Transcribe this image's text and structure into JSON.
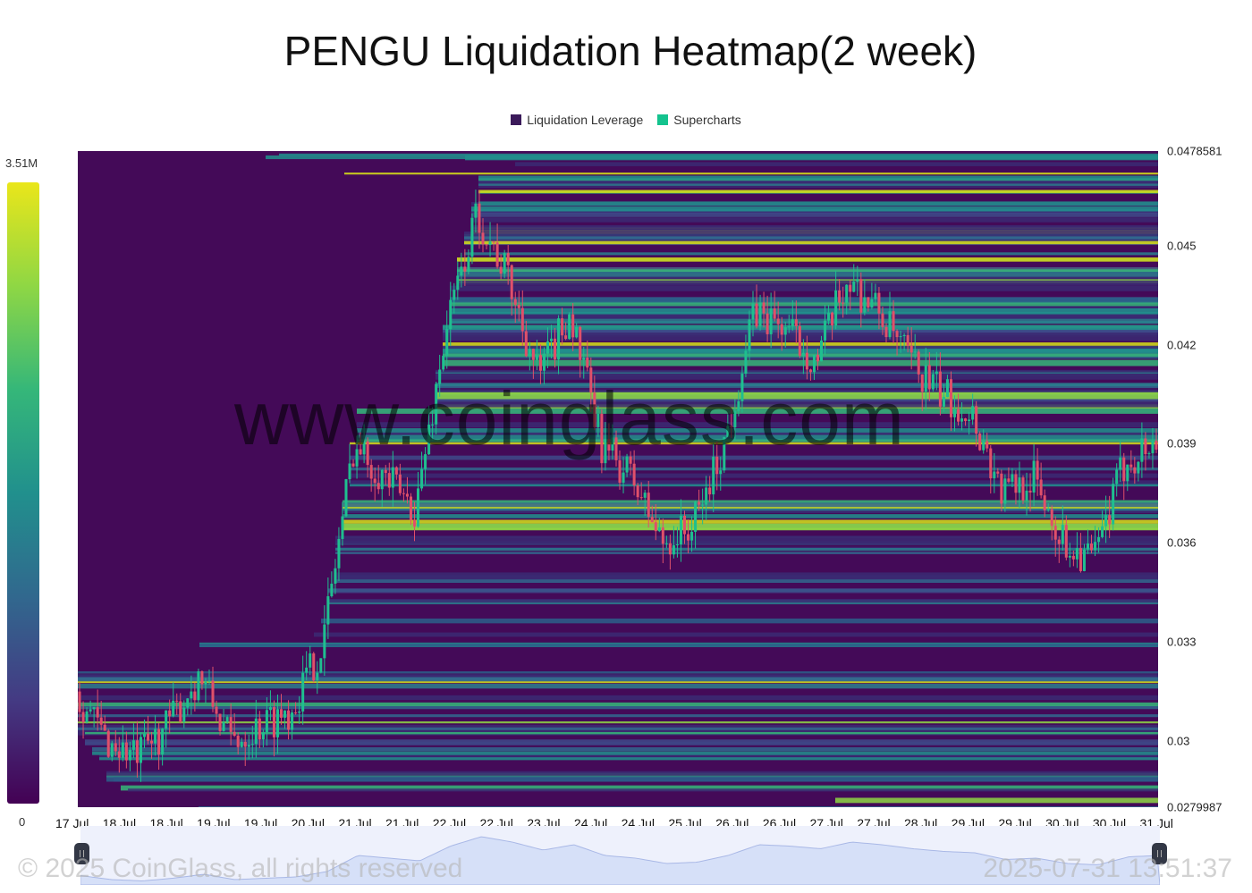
{
  "chart_data": {
    "type": "heatmap",
    "title": "PENGU Liquidation Heatmap(2 week)",
    "legend": [
      {
        "label": "Liquidation Leverage",
        "color": "#3b1a5a"
      },
      {
        "label": "Supercharts",
        "color": "#14c38e"
      }
    ],
    "color_scale": {
      "max_label": "3.51M",
      "min_label": "0",
      "colors": [
        "#eae61a",
        "#8fd744",
        "#35b779",
        "#21908d",
        "#31688e",
        "#443a83",
        "#440154"
      ]
    },
    "ylim": [
      0.0279987,
      0.0478581
    ],
    "y_ticks": [
      "0.0478581",
      "0.045",
      "0.042",
      "0.039",
      "0.036",
      "0.033",
      "0.03",
      "0.0279987"
    ],
    "x_ticks": [
      "17 Jul",
      "18 Jul",
      "18 Jul",
      "19 Jul",
      "19 Jul",
      "20 Jul",
      "21 Jul",
      "21 Jul",
      "22 Jul",
      "22 Jul",
      "23 Jul",
      "24 Jul",
      "24 Jul",
      "25 Jul",
      "26 Jul",
      "26 Jul",
      "27 Jul",
      "27 Jul",
      "28 Jul",
      "29 Jul",
      "29 Jul",
      "30 Jul",
      "30 Jul",
      "31 Jul"
    ],
    "price_path": [
      0.0315,
      0.03,
      0.0295,
      0.0305,
      0.032,
      0.03,
      0.0305,
      0.031,
      0.033,
      0.039,
      0.038,
      0.037,
      0.0425,
      0.046,
      0.044,
      0.041,
      0.043,
      0.039,
      0.038,
      0.036,
      0.0365,
      0.039,
      0.043,
      0.0425,
      0.0415,
      0.044,
      0.043,
      0.0415,
      0.0405,
      0.04,
      0.0375,
      0.038,
      0.036,
      0.0355,
      0.0385,
      0.039
    ]
  },
  "watermark": "www.coinglass.com",
  "copyright": "© 2025 CoinGlass, all rights reserved",
  "timestamp": "2025-07-31 13:51:37"
}
